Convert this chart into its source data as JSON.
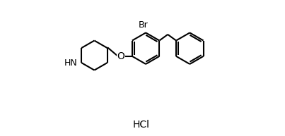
{
  "background_color": "#ffffff",
  "line_color": "#000000",
  "line_width": 1.5,
  "font_size_atom": 9,
  "font_size_hcl": 10,
  "label_Br": "Br",
  "label_O": "O",
  "label_NH": "HN",
  "label_HCl": "HCl",
  "figsize": [
    4.03,
    1.93
  ],
  "dpi": 100,
  "xlim": [
    0,
    10.5
  ],
  "ylim": [
    -1.2,
    5.0
  ]
}
